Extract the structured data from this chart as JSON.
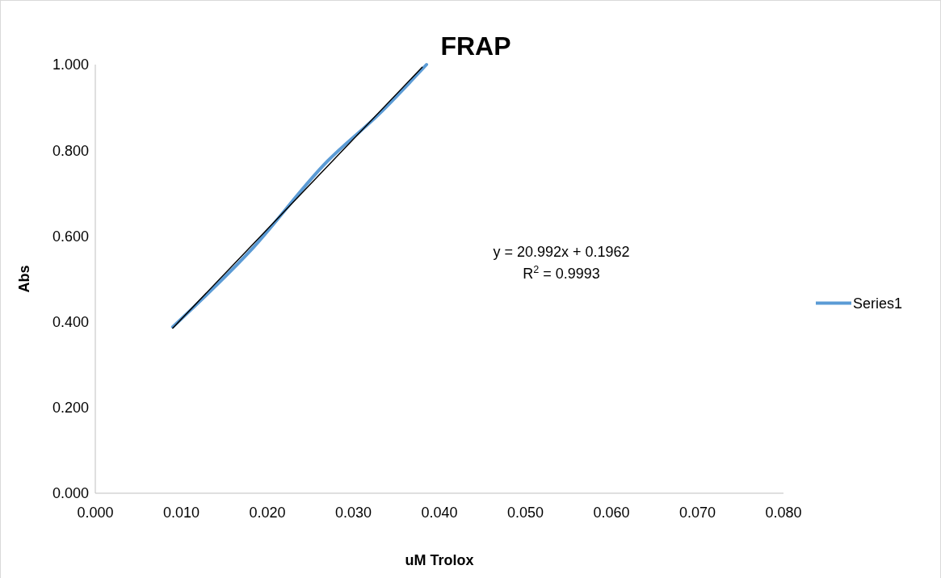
{
  "chart_data": {
    "type": "line",
    "title": "FRAP",
    "xlabel": "uM Trolox",
    "ylabel": "Abs",
    "xlim": [
      0,
      0.08
    ],
    "xticks": [
      {
        "value": 0,
        "label": "0.000"
      },
      {
        "value": 0.01,
        "label": "0.010"
      },
      {
        "value": 0.02,
        "label": "0.020"
      },
      {
        "value": 0.03,
        "label": "0.030"
      },
      {
        "value": 0.04,
        "label": "0.040"
      },
      {
        "value": 0.05,
        "label": "0.050"
      },
      {
        "value": 0.06,
        "label": "0.060"
      },
      {
        "value": 0.07,
        "label": "0.070"
      },
      {
        "value": 0.08,
        "label": "0.080"
      }
    ],
    "ylim": [
      0,
      1
    ],
    "yticks": [
      {
        "value": 0,
        "label": "0.000"
      },
      {
        "value": 0.2,
        "label": "0.200"
      },
      {
        "value": 0.4,
        "label": "0.400"
      },
      {
        "value": 0.6,
        "label": "0.600"
      },
      {
        "value": 0.8,
        "label": "0.800"
      },
      {
        "value": 1,
        "label": "1.000"
      }
    ],
    "series": [
      {
        "name": "Series1",
        "color": "#5b9bd5",
        "x": [
          0.009,
          0.018,
          0.027,
          0.033,
          0.0385
        ],
        "values": [
          0.388,
          0.565,
          0.775,
          0.885,
          1.0
        ]
      },
      {
        "type": "line",
        "color": "#000000",
        "x": [
          0.009,
          0.038
        ],
        "values": [
          0.385,
          0.994
        ]
      }
    ],
    "annotations": [
      "y = 20.992x + 0.1962",
      "R$^{2}$ = 0.9993"
    ],
    "legend": "right",
    "grid": false,
    "marker": "none",
    "line_style": "solid"
  }
}
